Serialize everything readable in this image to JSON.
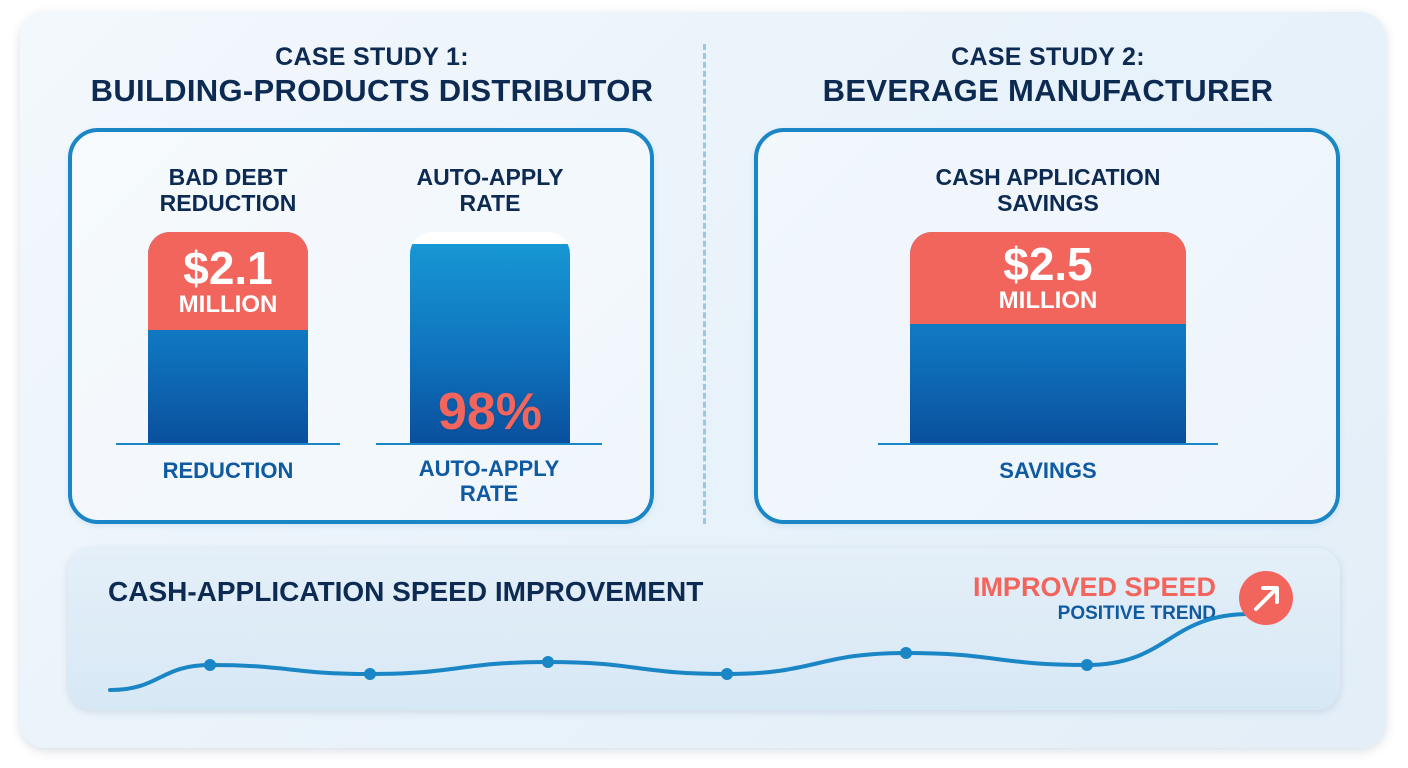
{
  "case1": {
    "heading_line1": "CASE STUDY 1:",
    "heading_line2": "BUILDING-PRODUCTS DISTRIBUTOR",
    "metric1": {
      "title_line1": "BAD DEBT",
      "title_line2": "REDUCTION",
      "value": "$2.1",
      "unit": "MILLION",
      "footer": "REDUCTION"
    },
    "metric2": {
      "title_line1": "AUTO-APPLY",
      "title_line2": "RATE",
      "value": "98%",
      "fill_percent": 98,
      "footer_line1": "AUTO-APPLY",
      "footer_line2": "RATE"
    }
  },
  "case2": {
    "heading_line1": "CASE STUDY 2:",
    "heading_line2": "BEVERAGE MANUFACTURER",
    "metric": {
      "title_line1": "CASH APPLICATION",
      "title_line2": "SAVINGS",
      "value": "$2.5",
      "unit": "MILLION",
      "footer": "SAVINGS"
    }
  },
  "trend": {
    "title": "CASH-APPLICATION SPEED IMPROVEMENT",
    "status_label": "IMPROVED SPEED",
    "status_sublabel": "POSITIVE TREND",
    "icon": "arrow-up-right-icon",
    "series_level": [
      0.35,
      0.2,
      0.4,
      0.2,
      0.55,
      0.35,
      0.9
    ]
  },
  "colors": {
    "navy": "#0d2b52",
    "blue": "#1a86c6",
    "coral": "#f2655d"
  }
}
